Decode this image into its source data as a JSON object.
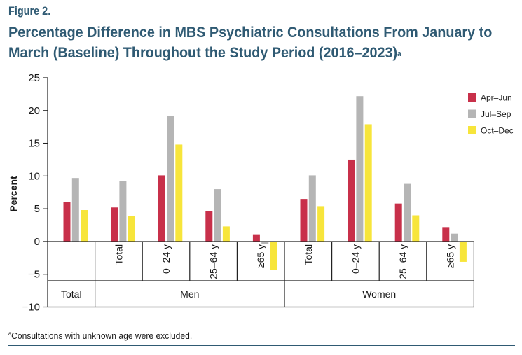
{
  "figure": {
    "label": "Figure 2.",
    "title": "Percentage Difference in MBS Psychiatric Consultations From January to March (Baseline) Throughout the Study Period (2016–2023)",
    "title_marker": "a",
    "footnote_marker": "a",
    "footnote": "Consultations with unknown age were excluded."
  },
  "colors": {
    "title": "#2f5a73",
    "apr_jun": "#c8304a",
    "jul_sep": "#b5b5b5",
    "oct_dec": "#f7e53b"
  },
  "chart_data": {
    "type": "bar",
    "title": "Percentage Difference in MBS Psychiatric Consultations From January to March (Baseline) Throughout the Study Period (2016–2023)",
    "xlabel": "",
    "ylabel": "Percent",
    "ylim": [
      -10,
      25
    ],
    "yticks": [
      25,
      20,
      15,
      10,
      5,
      0,
      -5,
      -10
    ],
    "ytick_labels": [
      "25",
      "20",
      "15",
      "10",
      "5",
      "0",
      "−5",
      "−10"
    ],
    "grid": false,
    "legend_position": "top-right",
    "categories": [
      {
        "group": "Total",
        "age": ""
      },
      {
        "group": "Men",
        "age": "Total"
      },
      {
        "group": "Men",
        "age": "0–24 y"
      },
      {
        "group": "Men",
        "age": "25–64 y"
      },
      {
        "group": "Men",
        "age": "≥65 y"
      },
      {
        "group": "Women",
        "age": "Total"
      },
      {
        "group": "Women",
        "age": "0–24 y"
      },
      {
        "group": "Women",
        "age": "25–64 y"
      },
      {
        "group": "Women",
        "age": "≥65 y"
      }
    ],
    "groups": [
      {
        "label": "Total",
        "span": 1
      },
      {
        "label": "Men",
        "span": 4
      },
      {
        "label": "Women",
        "span": 4
      }
    ],
    "series": [
      {
        "name": "Apr–Jun",
        "color_key": "apr_jun",
        "values": [
          6.0,
          5.2,
          10.1,
          4.6,
          1.1,
          6.5,
          12.5,
          5.8,
          2.2
        ]
      },
      {
        "name": "Jul–Sep",
        "color_key": "jul_sep",
        "values": [
          9.7,
          9.2,
          19.2,
          8.0,
          -0.4,
          10.1,
          22.2,
          8.8,
          1.2
        ]
      },
      {
        "name": "Oct–Dec",
        "color_key": "oct_dec",
        "values": [
          4.8,
          3.9,
          14.8,
          2.3,
          -4.3,
          5.4,
          17.9,
          4.0,
          -3.1
        ]
      }
    ]
  }
}
